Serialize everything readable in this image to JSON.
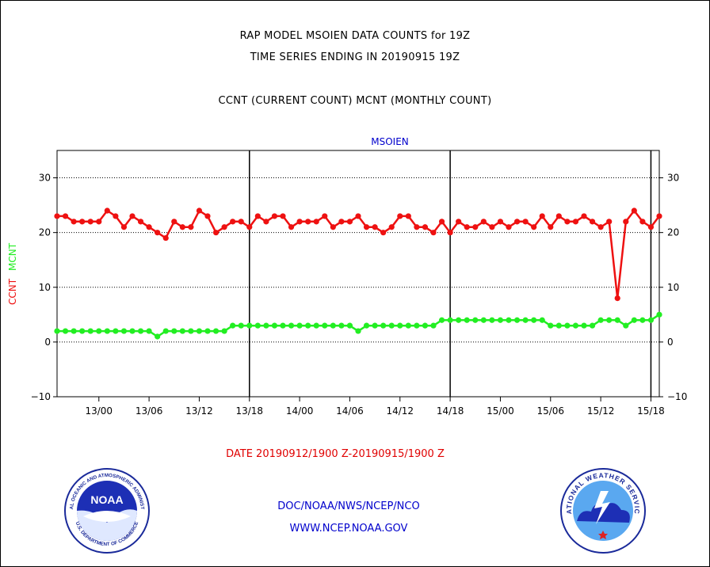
{
  "title_line1": "RAP MODEL MSOIEN DATA COUNTS for 19Z",
  "title_line2": "TIME SERIES ENDING IN 20190915 19Z",
  "subtitle": "CCNT (CURRENT COUNT) MCNT (MONTHLY COUNT)",
  "date_range": "DATE 20190912/1900 Z-20190915/1900 Z",
  "footer_line1": "DOC/NOAA/NWS/NCEP/NCO",
  "footer_line2": "WWW.NCEP.NOAA.GOV",
  "logos": {
    "noaa_text": "NOAA",
    "noaa_ring_top": "NATIONAL OCEANIC AND ATMOSPHERIC ADMINISTRATION",
    "noaa_ring_bottom": "U.S. DEPARTMENT OF COMMERCE",
    "nws_ring": "NATIONAL WEATHER SERVICE"
  },
  "colors": {
    "ccnt": "#ee1111",
    "mcnt": "#22ee22",
    "station": "#0000cc",
    "date_text": "#e00000"
  },
  "chart_data": {
    "type": "line",
    "title": "MSOIEN",
    "ylabel_left": "CCNT",
    "ylabel_right": "MCNT",
    "ylim": [
      -10,
      35
    ],
    "yticks": [
      -10,
      0,
      10,
      20,
      30
    ],
    "x_start": "12/19",
    "x_interval_hours": 1,
    "xtick_labels": [
      "13/00",
      "13/06",
      "13/12",
      "13/18",
      "14/00",
      "14/06",
      "14/12",
      "14/18",
      "15/00",
      "15/06",
      "15/12",
      "15/18"
    ],
    "xtick_index": [
      5,
      11,
      17,
      23,
      29,
      35,
      41,
      47,
      53,
      59,
      65,
      71
    ],
    "vertical_markers_index": [
      23,
      47,
      71
    ],
    "grid": true,
    "series": [
      {
        "name": "CCNT",
        "color": "#ee1111",
        "values": [
          23,
          23,
          22,
          22,
          22,
          22,
          24,
          23,
          21,
          23,
          22,
          21,
          20,
          19,
          22,
          21,
          21,
          24,
          23,
          20,
          21,
          22,
          22,
          21,
          23,
          22,
          23,
          23,
          21,
          22,
          22,
          22,
          23,
          21,
          22,
          22,
          23,
          21,
          21,
          20,
          21,
          23,
          23,
          21,
          21,
          20,
          22,
          20,
          22,
          21,
          21,
          22,
          21,
          22,
          21,
          22,
          22,
          21,
          23,
          21,
          23,
          22,
          22,
          23,
          22,
          21,
          22,
          8,
          22,
          24,
          22,
          21,
          23
        ]
      },
      {
        "name": "MCNT",
        "color": "#22ee22",
        "values": [
          2,
          2,
          2,
          2,
          2,
          2,
          2,
          2,
          2,
          2,
          2,
          2,
          1,
          2,
          2,
          2,
          2,
          2,
          2,
          2,
          2,
          3,
          3,
          3,
          3,
          3,
          3,
          3,
          3,
          3,
          3,
          3,
          3,
          3,
          3,
          3,
          2,
          3,
          3,
          3,
          3,
          3,
          3,
          3,
          3,
          3,
          4,
          4,
          4,
          4,
          4,
          4,
          4,
          4,
          4,
          4,
          4,
          4,
          4,
          3,
          3,
          3,
          3,
          3,
          3,
          4,
          4,
          4,
          3,
          4,
          4,
          4,
          5
        ]
      }
    ]
  }
}
